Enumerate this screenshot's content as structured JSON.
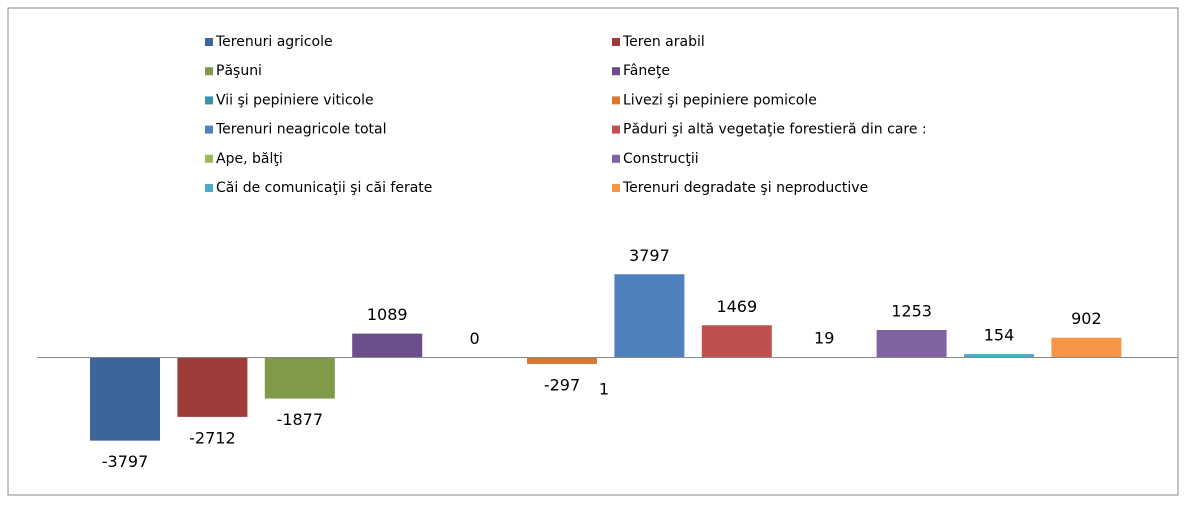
{
  "chart_data": {
    "type": "bar",
    "series": [
      {
        "name": "Terenuri agricole",
        "color": "#3c6699",
        "values": [
          -3797
        ]
      },
      {
        "name": "Teren arabil",
        "color": "#9e3c3a",
        "values": [
          -2712
        ]
      },
      {
        "name": "Păşuni",
        "color": "#7f9a48",
        "values": [
          -1877
        ]
      },
      {
        "name": "Fâneţe",
        "color": "#6a4f8a",
        "values": [
          1089
        ]
      },
      {
        "name": "Vii şi pepiniere viticole",
        "color": "#3792aa",
        "values": [
          0
        ]
      },
      {
        "name": "Livezi şi pepiniere pomicole",
        "color": "#d8772e",
        "values": [
          -297
        ]
      },
      {
        "name": "Terenuri neagricole total",
        "color": "#4f81bd",
        "values": [
          3797
        ]
      },
      {
        "name": "Păduri şi altă vegetaţie forestieră din care :",
        "color": "#c0504d",
        "values": [
          1469
        ]
      },
      {
        "name": "Ape, bălţi",
        "color": "#9bbb59",
        "values": [
          19
        ]
      },
      {
        "name": "Construcţii",
        "color": "#8064a2",
        "values": [
          1253
        ]
      },
      {
        "name": "Căi de comunicaţii şi căi ferate",
        "color": "#4bacc6",
        "values": [
          154
        ]
      },
      {
        "name": "Terenuri degradate şi neproductive",
        "color": "#f79646",
        "values": [
          902
        ]
      }
    ],
    "annotations": [
      "1"
    ],
    "ylim": [
      -5000,
      6000
    ]
  }
}
